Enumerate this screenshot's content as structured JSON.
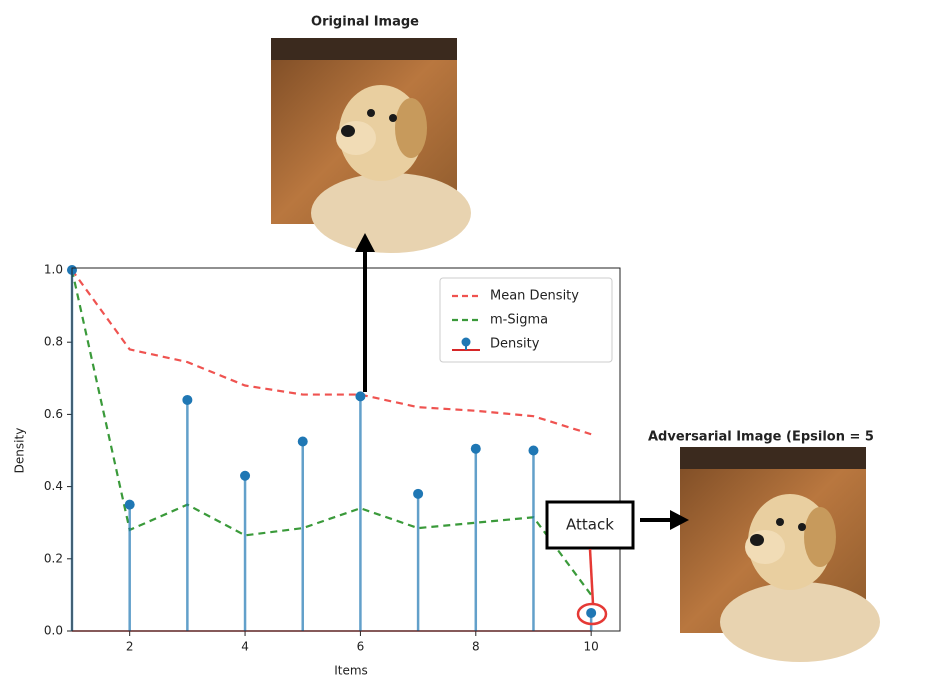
{
  "chart_data": {
    "type": "stem",
    "x": [
      1,
      2,
      3,
      4,
      5,
      6,
      7,
      8,
      9,
      10
    ],
    "xlim": [
      1,
      10.5
    ],
    "ylim": [
      0,
      1
    ],
    "xticks": [
      2,
      4,
      6,
      8,
      10
    ],
    "yticks": [
      {
        "value": 0,
        "label": "0.0"
      },
      0.2,
      0.4,
      0.6,
      0.8,
      {
        "value": 1,
        "label": "1.0"
      }
    ],
    "xlabel": "Items",
    "ylabel": "Density",
    "legend": "upper right",
    "series": [
      {
        "name": "Mean Density",
        "color": "#ef5350",
        "style": "dashed",
        "values": [
          1.0,
          0.78,
          0.745,
          0.68,
          0.655,
          0.655,
          0.62,
          0.61,
          0.595,
          0.545
        ]
      },
      {
        "name": "m-Sigma",
        "color": "#3a9a3a",
        "style": "dashed",
        "values": [
          1.0,
          0.28,
          0.35,
          0.265,
          0.285,
          0.34,
          0.285,
          0.3,
          0.315,
          0.1
        ]
      },
      {
        "name": "Density",
        "color": "#1f77b4",
        "style": "stem",
        "baseline_color": "#d62728",
        "values": [
          1.0,
          0.35,
          0.64,
          0.43,
          0.525,
          0.65,
          0.38,
          0.505,
          0.5,
          0.05
        ]
      }
    ]
  },
  "images": [
    {
      "title": "Original Image"
    },
    {
      "title": "Adversarial Image (Epsilon = 5"
    }
  ],
  "annotation": "Attack"
}
